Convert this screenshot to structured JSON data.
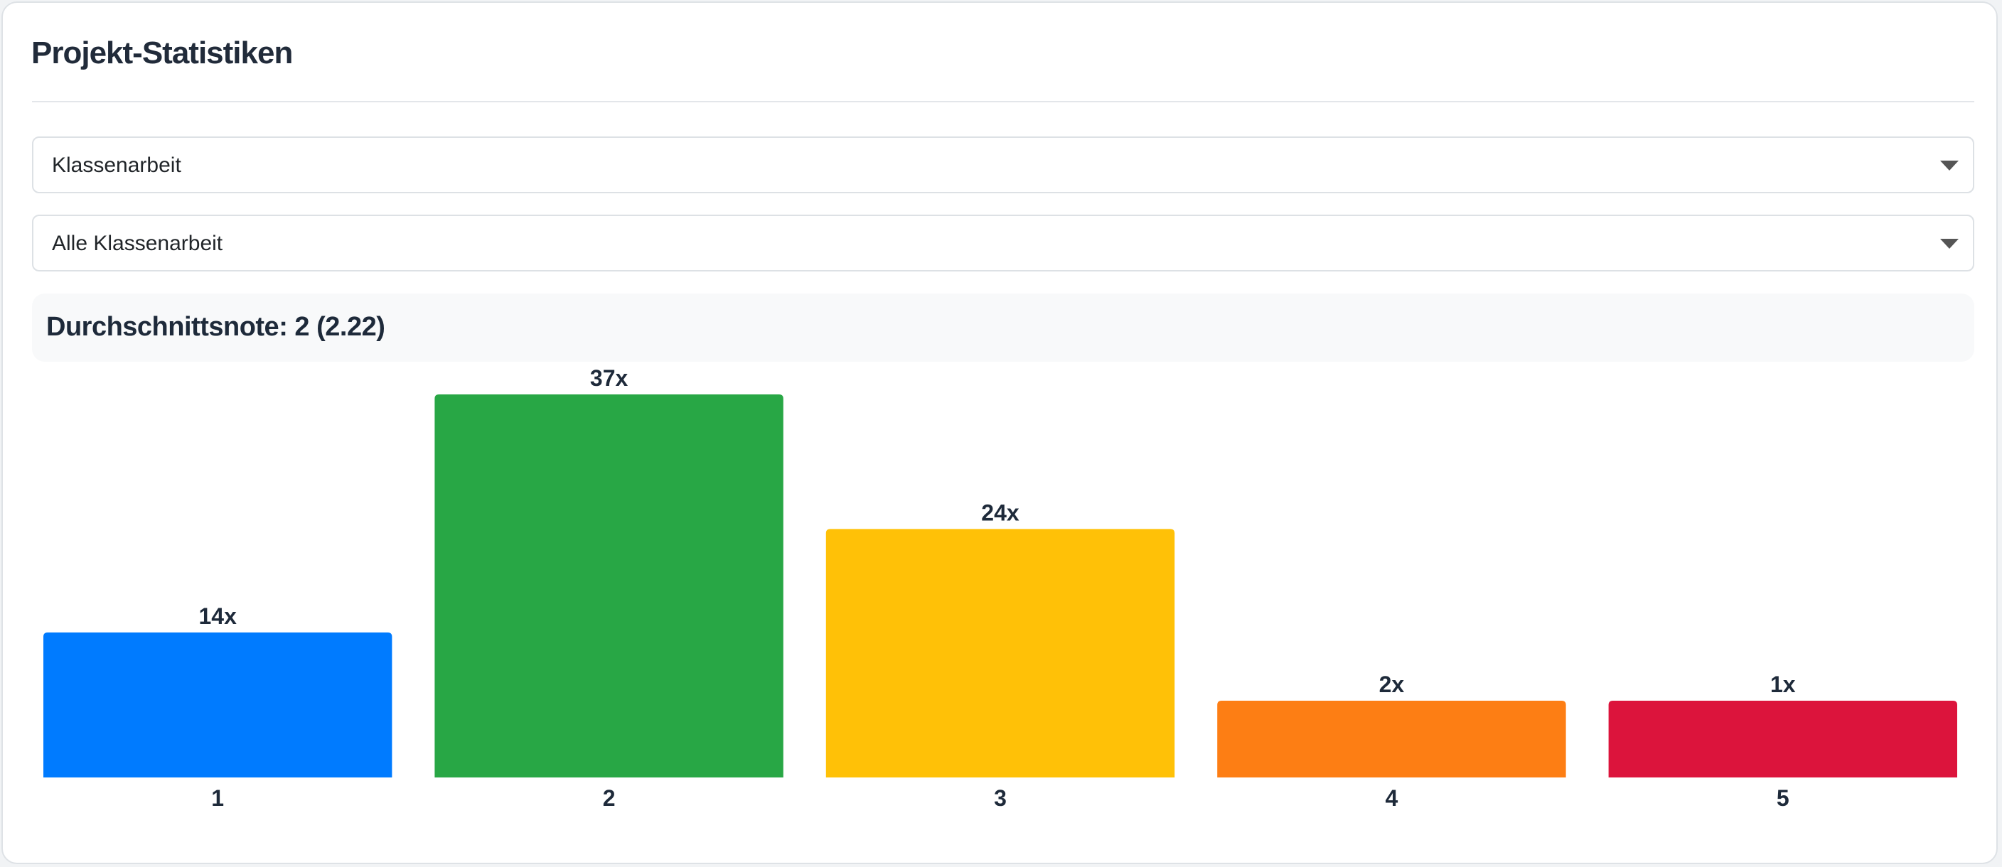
{
  "header": {
    "title": "Projekt-Statistiken"
  },
  "filters": {
    "type": "Klassenarbeit",
    "selection": "Alle Klassenarbeit"
  },
  "summary": {
    "average": "Durchschnittsnote: 2 (2.22)"
  },
  "chart_data": {
    "type": "bar",
    "categories": [
      "1",
      "2",
      "3",
      "4",
      "5"
    ],
    "values": [
      14,
      37,
      24,
      2,
      1
    ],
    "value_labels": [
      "14x",
      "37x",
      "24x",
      "2x",
      "1x"
    ],
    "colors": [
      "#007bff",
      "#28a745",
      "#ffc107",
      "#fd7e14",
      "#dc143c"
    ]
  }
}
